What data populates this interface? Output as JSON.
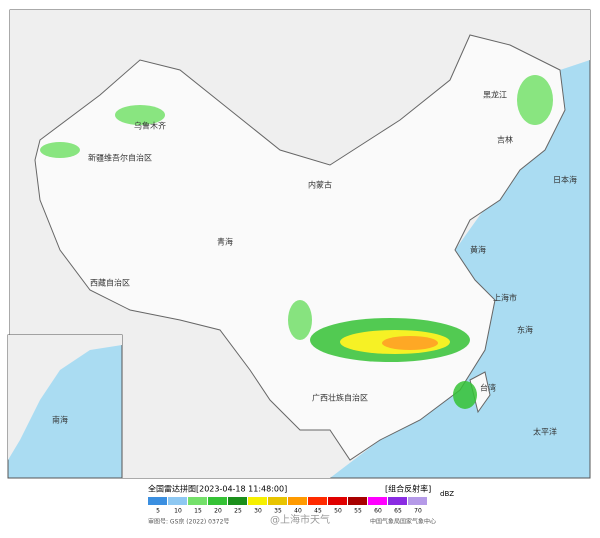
{
  "map": {
    "labels": [
      "新疆维吾尔自治区",
      "乌鲁木齐",
      "西藏自治区",
      "青海",
      "内蒙古",
      "黑龙江",
      "吉林",
      "上海市",
      "黄海",
      "东海",
      "日本海",
      "太平洋",
      "南海",
      "台湾",
      "广西壮族自治区"
    ]
  },
  "legend": {
    "title": "全国雷达拼图[2023-04-18 11:48:00]",
    "product": "[组合反射率]",
    "unit": "dBZ",
    "items": [
      {
        "value": 5,
        "color": "#3b8fe0"
      },
      {
        "value": 10,
        "color": "#8ec8f2"
      },
      {
        "value": 15,
        "color": "#74e06a"
      },
      {
        "value": 20,
        "color": "#35c235"
      },
      {
        "value": 25,
        "color": "#1b8f1b"
      },
      {
        "value": 30,
        "color": "#f6f000"
      },
      {
        "value": 35,
        "color": "#e8c400"
      },
      {
        "value": 40,
        "color": "#ff9a00"
      },
      {
        "value": 45,
        "color": "#ff2a00"
      },
      {
        "value": 50,
        "color": "#e00000"
      },
      {
        "value": 55,
        "color": "#a80000"
      },
      {
        "value": 60,
        "color": "#ff00ff"
      },
      {
        "value": 65,
        "color": "#8a2be2"
      },
      {
        "value": 70,
        "color": "#b59ae8"
      }
    ]
  },
  "footer": {
    "approval": "审图号: GS京 (2022) 0372号",
    "agency": "中国气象局国家气象中心",
    "watermark": "@上海市天气"
  }
}
